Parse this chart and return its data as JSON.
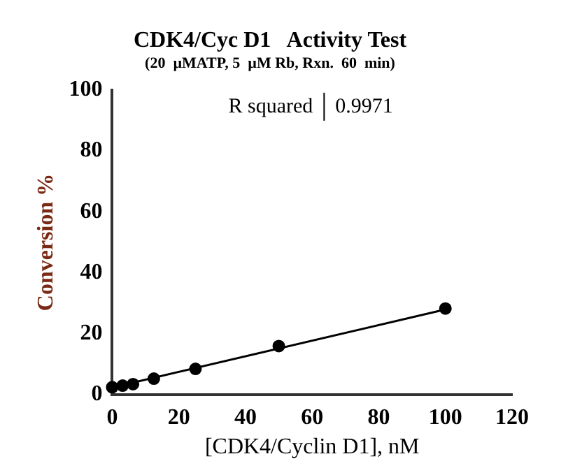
{
  "chart_data": {
    "type": "scatter",
    "title": "CDK4/Cyc D1   Activity Test",
    "subtitle": "(20  µMATP, 5  µM Rb, Rxn.  60  min)",
    "xlabel": "[CDK4/Cyclin D1], nM",
    "ylabel": "Conversion %",
    "x": [
      0,
      3.125,
      6.25,
      12.5,
      25,
      50,
      100
    ],
    "series": [
      {
        "color": "#000000",
        "values": [
          2.5,
          3,
          3.5,
          5.3,
          8.5,
          16,
          28.3
        ]
      },
      {
        "type": "line",
        "color": "#000000",
        "marker": "none",
        "x": [
          0,
          100
        ],
        "values": [
          2.4,
          28
        ]
      }
    ],
    "xlim": [
      0,
      120
    ],
    "xticks": [
      0,
      20,
      40,
      60,
      80,
      100,
      120
    ],
    "ylim": [
      0,
      100
    ],
    "yticks": [
      0,
      20,
      40,
      60,
      80,
      100
    ],
    "grid": false,
    "legend": false,
    "marker": "circle",
    "annotations": [
      "R squared",
      "0.9971"
    ]
  }
}
